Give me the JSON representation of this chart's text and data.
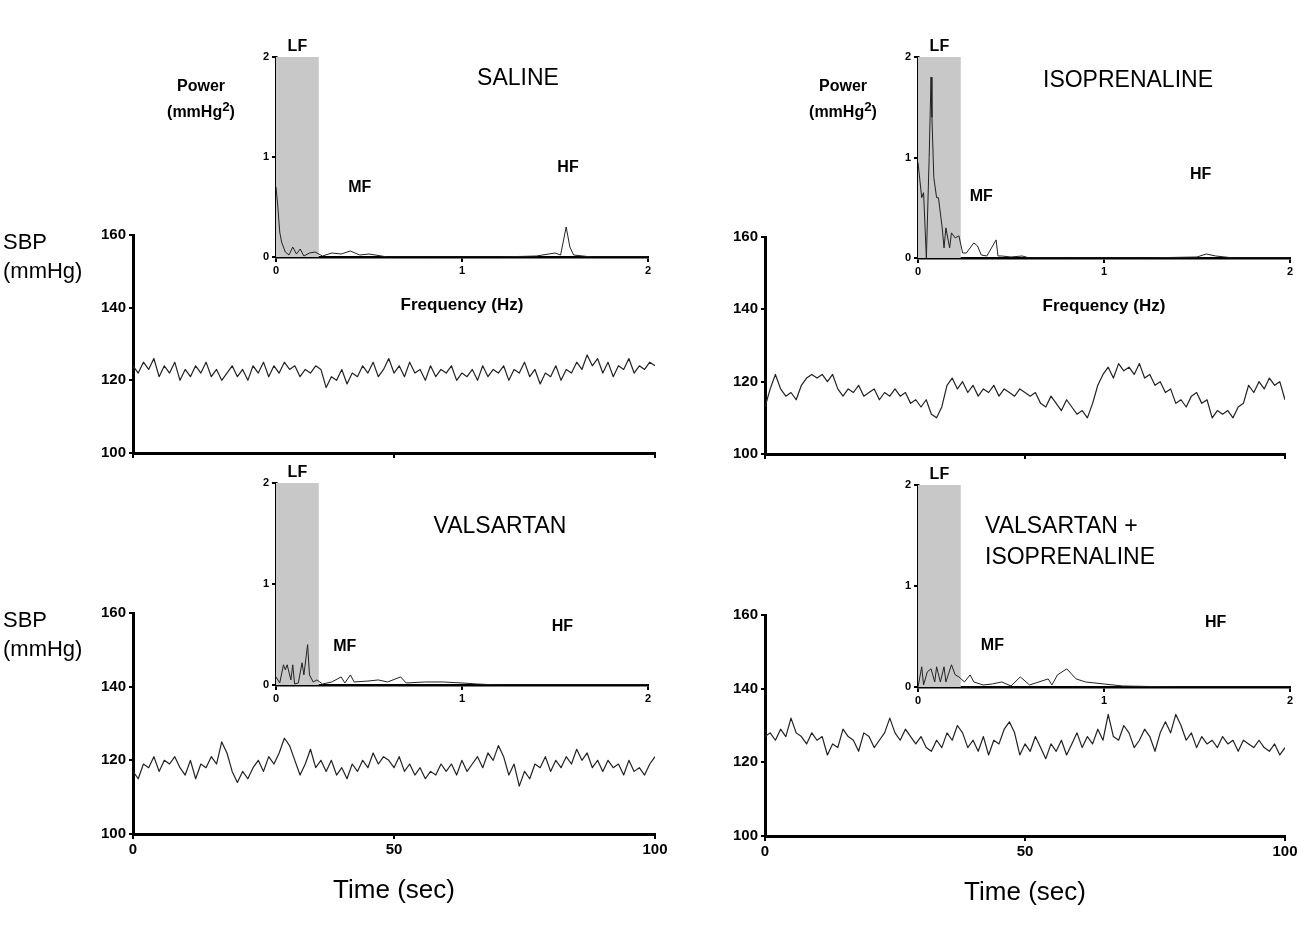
{
  "chart_data": [
    {
      "type": "line",
      "title": "SALINE",
      "ylabel": "Power (mmHg$^{2}$)",
      "xlabel": "Frequency (Hz)",
      "marker": "none",
      "legend": false,
      "xlim": [
        0,
        2
      ],
      "xticks": [
        0,
        1,
        2
      ],
      "ylim": [
        0,
        2
      ],
      "yticks": [
        0,
        1,
        2
      ],
      "bands": [
        {
          "axis": "x",
          "from": 0,
          "to": 0.23,
          "label": "LF",
          "color": "#c8c8c8"
        }
      ],
      "annotations": [
        "MF",
        "HF"
      ],
      "x": [
        0,
        0.01,
        0.02,
        0.03,
        0.05,
        0.07,
        0.09,
        0.11,
        0.13,
        0.15,
        0.18,
        0.21,
        0.25,
        0.3,
        0.35,
        0.4,
        0.45,
        0.5,
        0.6,
        0.8,
        1.2,
        1.4,
        1.5,
        1.53,
        1.56,
        1.58,
        1.6,
        1.65,
        1.7,
        2
      ],
      "series": [
        {
          "color": "#222222",
          "values": [
            0.7,
            0.5,
            0.25,
            0.15,
            0.05,
            0.02,
            0.1,
            0.03,
            0.08,
            0.01,
            0.04,
            0.05,
            0.01,
            0.04,
            0.03,
            0.06,
            0.02,
            0.03,
            0,
            0,
            0,
            0.01,
            0.04,
            0.02,
            0.3,
            0.1,
            0.02,
            0.01,
            0,
            0
          ]
        }
      ]
    },
    {
      "type": "line",
      "ylabel": "SBP (mmHg)",
      "marker": "none",
      "legend": false,
      "tick_labels": "y",
      "xlim": [
        0,
        100
      ],
      "xticks": [
        0,
        50,
        100
      ],
      "ylim": [
        100,
        160
      ],
      "yticks": [
        100,
        120,
        140,
        160
      ],
      "x": [
        0,
        1,
        2,
        3,
        4,
        5,
        6,
        7,
        8,
        9,
        10,
        11,
        12,
        13,
        14,
        15,
        16,
        17,
        18,
        19,
        20,
        21,
        22,
        23,
        24,
        25,
        26,
        27,
        28,
        29,
        30,
        31,
        32,
        33,
        34,
        35,
        36,
        37,
        38,
        39,
        40,
        41,
        42,
        43,
        44,
        45,
        46,
        47,
        48,
        49,
        50,
        51,
        52,
        53,
        54,
        55,
        56,
        57,
        58,
        59,
        60,
        61,
        62,
        63,
        64,
        65,
        66,
        67,
        68,
        69,
        70,
        71,
        72,
        73,
        74,
        75,
        76,
        77,
        78,
        79,
        80,
        81,
        82,
        83,
        84,
        85,
        86,
        87,
        88,
        89,
        90,
        91,
        92,
        93,
        94,
        95,
        96,
        97,
        98,
        99,
        100
      ],
      "series": [
        {
          "color": "#222222",
          "values": [
            124,
            122,
            125,
            123,
            126,
            121,
            124,
            122,
            125,
            120,
            123,
            121,
            124,
            122,
            125,
            121,
            123,
            120,
            122,
            124,
            121,
            123,
            120,
            124,
            122,
            125,
            121,
            124,
            122,
            125,
            123,
            124,
            121,
            123,
            122,
            124,
            123,
            118,
            121,
            120,
            123,
            119,
            122,
            121,
            124,
            122,
            125,
            121,
            123,
            126,
            122,
            124,
            121,
            125,
            122,
            123,
            120,
            124,
            121,
            123,
            122,
            124,
            120,
            122,
            121,
            123,
            120,
            124,
            121,
            123,
            122,
            124,
            120,
            123,
            122,
            125,
            121,
            123,
            119,
            122,
            121,
            124,
            120,
            123,
            122,
            125,
            123,
            127,
            124,
            126,
            122,
            125,
            121,
            124,
            123,
            126,
            122,
            124,
            123,
            125,
            124
          ]
        }
      ]
    },
    {
      "type": "line",
      "title": "ISOPRENALINE",
      "ylabel": "Power (mmHg$^{2}$)",
      "xlabel": "Frequency (Hz)",
      "marker": "none",
      "legend": false,
      "xlim": [
        0,
        2
      ],
      "xticks": [
        0,
        1,
        2
      ],
      "ylim": [
        0,
        2
      ],
      "yticks": [
        0,
        1,
        2
      ],
      "bands": [
        {
          "axis": "x",
          "from": 0,
          "to": 0.23,
          "label": "LF",
          "color": "#c8c8c8"
        }
      ],
      "annotations": [
        "MF",
        "HF"
      ],
      "x": [
        0,
        0.02,
        0.03,
        0.045,
        0.06,
        0.07,
        0.075,
        0.085,
        0.1,
        0.11,
        0.13,
        0.14,
        0.15,
        0.17,
        0.18,
        0.2,
        0.22,
        0.24,
        0.26,
        0.3,
        0.32,
        0.34,
        0.37,
        0.42,
        0.43,
        0.45,
        0.5,
        0.56,
        0.6,
        0.8,
        1.2,
        1.5,
        1.55,
        1.6,
        1.7,
        2
      ],
      "series": [
        {
          "color": "#222222",
          "values": [
            0.95,
            0.6,
            0.65,
            0,
            1.0,
            1.8,
            1.4,
            0.8,
            0.6,
            0.6,
            0.3,
            0.1,
            0.3,
            0.1,
            0.25,
            0.2,
            0.22,
            0.05,
            0.05,
            0.15,
            0.12,
            0.03,
            0.02,
            0.18,
            0.02,
            0.02,
            0.01,
            0.02,
            0,
            0,
            0,
            0.01,
            0.04,
            0.02,
            0,
            0
          ]
        }
      ]
    },
    {
      "type": "line",
      "marker": "none",
      "legend": false,
      "tick_labels": "y",
      "xlim": [
        0,
        100
      ],
      "xticks": [
        0,
        50,
        100
      ],
      "ylim": [
        100,
        160
      ],
      "yticks": [
        100,
        120,
        140,
        160
      ],
      "x": [
        0,
        1,
        2,
        3,
        4,
        5,
        6,
        7,
        8,
        9,
        10,
        11,
        12,
        13,
        14,
        15,
        16,
        17,
        18,
        19,
        20,
        21,
        22,
        23,
        24,
        25,
        26,
        27,
        28,
        29,
        30,
        31,
        32,
        33,
        34,
        35,
        36,
        37,
        38,
        39,
        40,
        41,
        42,
        43,
        44,
        45,
        46,
        47,
        48,
        49,
        50,
        51,
        52,
        53,
        54,
        55,
        56,
        57,
        58,
        59,
        60,
        61,
        62,
        63,
        64,
        65,
        66,
        67,
        68,
        69,
        70,
        71,
        72,
        73,
        74,
        75,
        76,
        77,
        78,
        79,
        80,
        81,
        82,
        83,
        84,
        85,
        86,
        87,
        88,
        89,
        90,
        91,
        92,
        93,
        94,
        95,
        96,
        97,
        98,
        99,
        100
      ],
      "series": [
        {
          "color": "#222222",
          "values": [
            113,
            118,
            122,
            118,
            116,
            117,
            115,
            119,
            121,
            122,
            121,
            122,
            120,
            122,
            118,
            116,
            118,
            117,
            119,
            116,
            117,
            118,
            115,
            117,
            116,
            118,
            116,
            117,
            114,
            115,
            113,
            115,
            111,
            110,
            113,
            119,
            121,
            118,
            120,
            117,
            119,
            116,
            118,
            117,
            119,
            116,
            118,
            117,
            116,
            118,
            117,
            116,
            117,
            114,
            113,
            116,
            114,
            112,
            115,
            113,
            111,
            112,
            110,
            114,
            119,
            122,
            124,
            121,
            125,
            123,
            124,
            122,
            125,
            121,
            122,
            119,
            120,
            117,
            118,
            114,
            115,
            113,
            116,
            117,
            114,
            115,
            110,
            112,
            111,
            112,
            110,
            113,
            114,
            119,
            117,
            120,
            118,
            121,
            119,
            120,
            115
          ]
        }
      ]
    },
    {
      "type": "line",
      "title": "VALSARTAN",
      "marker": "none",
      "legend": false,
      "xlim": [
        0,
        2
      ],
      "xticks": [
        0,
        1,
        2
      ],
      "ylim": [
        0,
        2
      ],
      "yticks": [
        0,
        1,
        2
      ],
      "bands": [
        {
          "axis": "x",
          "from": 0,
          "to": 0.23,
          "label": "LF",
          "color": "#c8c8c8"
        }
      ],
      "annotations": [
        "MF",
        "HF"
      ],
      "x": [
        0,
        0.02,
        0.04,
        0.05,
        0.06,
        0.08,
        0.09,
        0.1,
        0.12,
        0.14,
        0.15,
        0.17,
        0.18,
        0.2,
        0.22,
        0.25,
        0.3,
        0.35,
        0.37,
        0.4,
        0.42,
        0.5,
        0.55,
        0.6,
        0.67,
        0.7,
        0.8,
        0.9,
        1.0,
        1.08,
        1.2,
        2
      ],
      "series": [
        {
          "color": "#222222",
          "values": [
            0.08,
            0.02,
            0.2,
            0.15,
            0.2,
            0.05,
            0.2,
            0.01,
            0.02,
            0.22,
            0.1,
            0.4,
            0.1,
            0.03,
            0.05,
            0.01,
            0.03,
            0.08,
            0.02,
            0.1,
            0.03,
            0.04,
            0.05,
            0.03,
            0.08,
            0.02,
            0.03,
            0.03,
            0.02,
            0.01,
            0,
            0
          ]
        }
      ]
    },
    {
      "type": "line",
      "ylabel": "SBP (mmHg)",
      "xlabel": "Time (sec)",
      "marker": "none",
      "legend": false,
      "xlim": [
        0,
        100
      ],
      "xticks": [
        0,
        50,
        100
      ],
      "ylim": [
        100,
        160
      ],
      "yticks": [
        100,
        120,
        140,
        160
      ],
      "x": [
        0,
        1,
        2,
        3,
        4,
        5,
        6,
        7,
        8,
        9,
        10,
        11,
        12,
        13,
        14,
        15,
        16,
        17,
        18,
        19,
        20,
        21,
        22,
        23,
        24,
        25,
        26,
        27,
        28,
        29,
        30,
        31,
        32,
        33,
        34,
        35,
        36,
        37,
        38,
        39,
        40,
        41,
        42,
        43,
        44,
        45,
        46,
        47,
        48,
        49,
        50,
        51,
        52,
        53,
        54,
        55,
        56,
        57,
        58,
        59,
        60,
        61,
        62,
        63,
        64,
        65,
        66,
        67,
        68,
        69,
        70,
        71,
        72,
        73,
        74,
        75,
        76,
        77,
        78,
        79,
        80,
        81,
        82,
        83,
        84,
        85,
        86,
        87,
        88,
        89,
        90,
        91,
        92,
        93,
        94,
        95,
        96,
        97,
        98,
        99,
        100
      ],
      "series": [
        {
          "color": "#222222",
          "values": [
            117,
            115,
            119,
            118,
            121,
            117,
            120,
            119,
            121,
            118,
            116,
            120,
            115,
            119,
            118,
            121,
            119,
            125,
            122,
            117,
            114,
            117,
            115,
            118,
            120,
            117,
            121,
            119,
            122,
            126,
            124,
            120,
            116,
            119,
            123,
            118,
            120,
            117,
            120,
            116,
            118,
            115,
            119,
            117,
            120,
            118,
            122,
            119,
            121,
            120,
            118,
            121,
            117,
            119,
            116,
            118,
            115,
            117,
            116,
            119,
            117,
            119,
            116,
            120,
            117,
            119,
            121,
            118,
            122,
            120,
            124,
            121,
            116,
            119,
            113,
            117,
            115,
            119,
            118,
            121,
            117,
            120,
            118,
            121,
            119,
            123,
            120,
            122,
            118,
            120,
            117,
            120,
            118,
            119,
            116,
            120,
            117,
            118,
            116,
            119,
            121
          ]
        }
      ]
    },
    {
      "type": "line",
      "title": "VALSARTAN + ISOPRENALINE",
      "marker": "none",
      "legend": false,
      "xlim": [
        0,
        2
      ],
      "xticks": [
        0,
        1,
        2
      ],
      "ylim": [
        0,
        2
      ],
      "yticks": [
        0,
        1,
        2
      ],
      "bands": [
        {
          "axis": "x",
          "from": 0,
          "to": 0.23,
          "label": "LF",
          "color": "#c8c8c8"
        }
      ],
      "annotations": [
        "MF",
        "HF"
      ],
      "x": [
        0,
        0.02,
        0.03,
        0.05,
        0.07,
        0.09,
        0.1,
        0.12,
        0.14,
        0.15,
        0.18,
        0.2,
        0.22,
        0.25,
        0.28,
        0.3,
        0.35,
        0.4,
        0.45,
        0.5,
        0.55,
        0.6,
        0.7,
        0.72,
        0.75,
        0.8,
        0.85,
        0.9,
        1.0,
        1.1,
        1.4,
        2
      ],
      "series": [
        {
          "color": "#222222",
          "values": [
            0,
            0.2,
            0.02,
            0.15,
            0.18,
            0.05,
            0.2,
            0.05,
            0.2,
            0.05,
            0.22,
            0.12,
            0.1,
            0.05,
            0.12,
            0.05,
            0.02,
            0.03,
            0.05,
            0.01,
            0.1,
            0.02,
            0.08,
            0.02,
            0.12,
            0.18,
            0.08,
            0.05,
            0.03,
            0.01,
            0,
            0
          ]
        }
      ]
    },
    {
      "type": "line",
      "xlabel": "Time (sec)",
      "marker": "none",
      "legend": false,
      "xlim": [
        0,
        100
      ],
      "xticks": [
        0,
        50,
        100
      ],
      "ylim": [
        100,
        160
      ],
      "yticks": [
        100,
        120,
        140,
        160
      ],
      "x": [
        0,
        1,
        2,
        3,
        4,
        5,
        6,
        7,
        8,
        9,
        10,
        11,
        12,
        13,
        14,
        15,
        16,
        17,
        18,
        19,
        20,
        21,
        22,
        23,
        24,
        25,
        26,
        27,
        28,
        29,
        30,
        31,
        32,
        33,
        34,
        35,
        36,
        37,
        38,
        39,
        40,
        41,
        42,
        43,
        44,
        45,
        46,
        47,
        48,
        49,
        50,
        51,
        52,
        53,
        54,
        55,
        56,
        57,
        58,
        59,
        60,
        61,
        62,
        63,
        64,
        65,
        66,
        67,
        68,
        69,
        70,
        71,
        72,
        73,
        74,
        75,
        76,
        77,
        78,
        79,
        80,
        81,
        82,
        83,
        84,
        85,
        86,
        87,
        88,
        89,
        90,
        91,
        92,
        93,
        94,
        95,
        96,
        97,
        98,
        99,
        100
      ],
      "series": [
        {
          "color": "#222222",
          "values": [
            127,
            128,
            126,
            129,
            127,
            132,
            128,
            127,
            125,
            128,
            126,
            127,
            122,
            125,
            124,
            129,
            127,
            126,
            123,
            128,
            127,
            124,
            126,
            128,
            132,
            128,
            126,
            129,
            127,
            125,
            127,
            124,
            123,
            126,
            124,
            128,
            126,
            130,
            128,
            124,
            126,
            123,
            127,
            122,
            126,
            125,
            129,
            131,
            128,
            122,
            125,
            123,
            127,
            124,
            121,
            125,
            123,
            126,
            122,
            125,
            128,
            124,
            127,
            125,
            129,
            126,
            133,
            127,
            126,
            130,
            128,
            124,
            126,
            129,
            127,
            123,
            128,
            131,
            128,
            133,
            130,
            126,
            128,
            124,
            127,
            125,
            126,
            124,
            127,
            125,
            126,
            123,
            126,
            125,
            124,
            126,
            124,
            123,
            125,
            122,
            124
          ]
        }
      ]
    }
  ]
}
